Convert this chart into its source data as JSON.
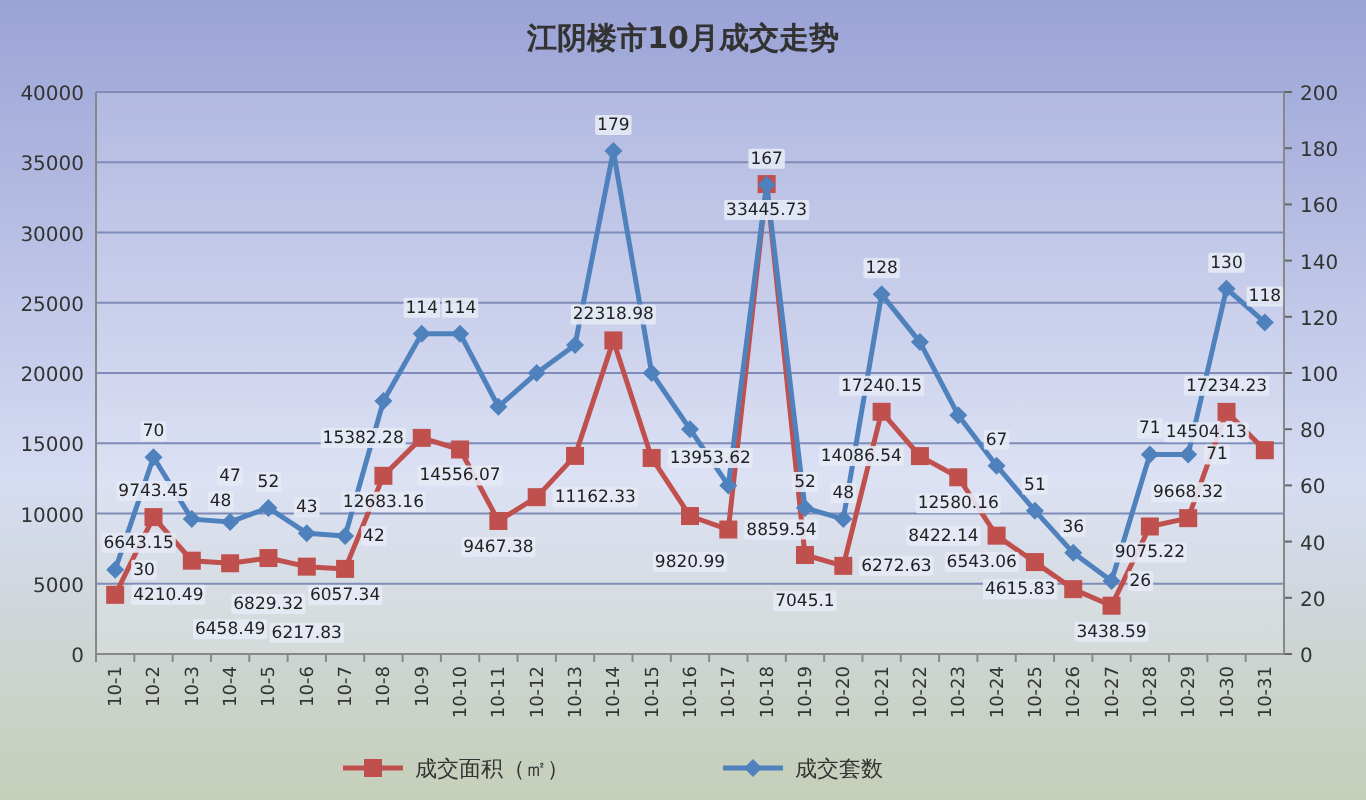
{
  "chart_data": {
    "type": "line",
    "title": "江阴楼市10月成交走势",
    "categories": [
      "10-1",
      "10-2",
      "10-3",
      "10-4",
      "10-5",
      "10-6",
      "10-7",
      "10-8",
      "10-9",
      "10-10",
      "10-11",
      "10-12",
      "10-13",
      "10-14",
      "10-15",
      "10-16",
      "10-17",
      "10-18",
      "10-19",
      "10-20",
      "10-21",
      "10-22",
      "10-23",
      "10-24",
      "10-25",
      "10-26",
      "10-27",
      "10-28",
      "10-29",
      "10-30",
      "10-31"
    ],
    "series": [
      {
        "name": "成交面积（㎡）",
        "color": "#c0504d",
        "marker": "square",
        "values": [
          4210.49,
          9743.45,
          6643.15,
          6458.49,
          6829.32,
          6217.83,
          6057.34,
          12683.16,
          15382.28,
          14556.07,
          9467.38,
          11162.33,
          14100,
          22318.98,
          13953.62,
          9820.99,
          8859.54,
          33445.73,
          7045.1,
          6272.63,
          17240.15,
          14086.54,
          12580.16,
          8422.14,
          6543.06,
          4615.83,
          3438.59,
          9075.22,
          9668.32,
          17234.23,
          14504.13
        ],
        "value_labels": [
          "4210.49",
          "9743.45",
          "6643.15",
          "6458.49",
          "6829.32",
          "6217.83",
          "6057.34",
          "12683.16",
          "15382.28",
          "14556.07",
          "9467.38",
          "11162.33",
          null,
          "22318.98",
          "13953.62",
          "9820.99",
          "8859.54",
          "33445.73",
          "7045.1",
          "6272.63",
          "17240.15",
          "14086.54",
          "12580.16",
          "8422.14",
          "6543.06",
          "4615.83",
          "3438.59",
          "9075.22",
          "9668.32",
          "17234.23",
          "14504.13"
        ]
      },
      {
        "name": "成交套数",
        "color": "#4f81bd",
        "marker": "diamond",
        "axis": "y2",
        "values": [
          30,
          70,
          48,
          47,
          52,
          43,
          42,
          90,
          114,
          114,
          88,
          100,
          110,
          179,
          100,
          80,
          60,
          167,
          52,
          48,
          128,
          111,
          85,
          67,
          51,
          36,
          26,
          71,
          71,
          130,
          118
        ],
        "value_labels": [
          "30",
          "70",
          "48",
          "47",
          "52",
          "43",
          "42",
          null,
          "114",
          "114",
          null,
          null,
          null,
          "179",
          null,
          null,
          null,
          "167",
          "52",
          "48",
          "128",
          null,
          null,
          "67",
          "51",
          "36",
          "26",
          "71",
          "71",
          "130",
          "118"
        ]
      }
    ],
    "ylim": [
      0,
      40000
    ],
    "yticks": [
      0,
      5000,
      10000,
      15000,
      20000,
      25000,
      30000,
      35000,
      40000
    ],
    "y2lim": [
      0,
      200
    ],
    "y2ticks": [
      0,
      20,
      40,
      60,
      80,
      100,
      120,
      140,
      160,
      180,
      200
    ],
    "grid": "y",
    "legend": "bottom"
  }
}
